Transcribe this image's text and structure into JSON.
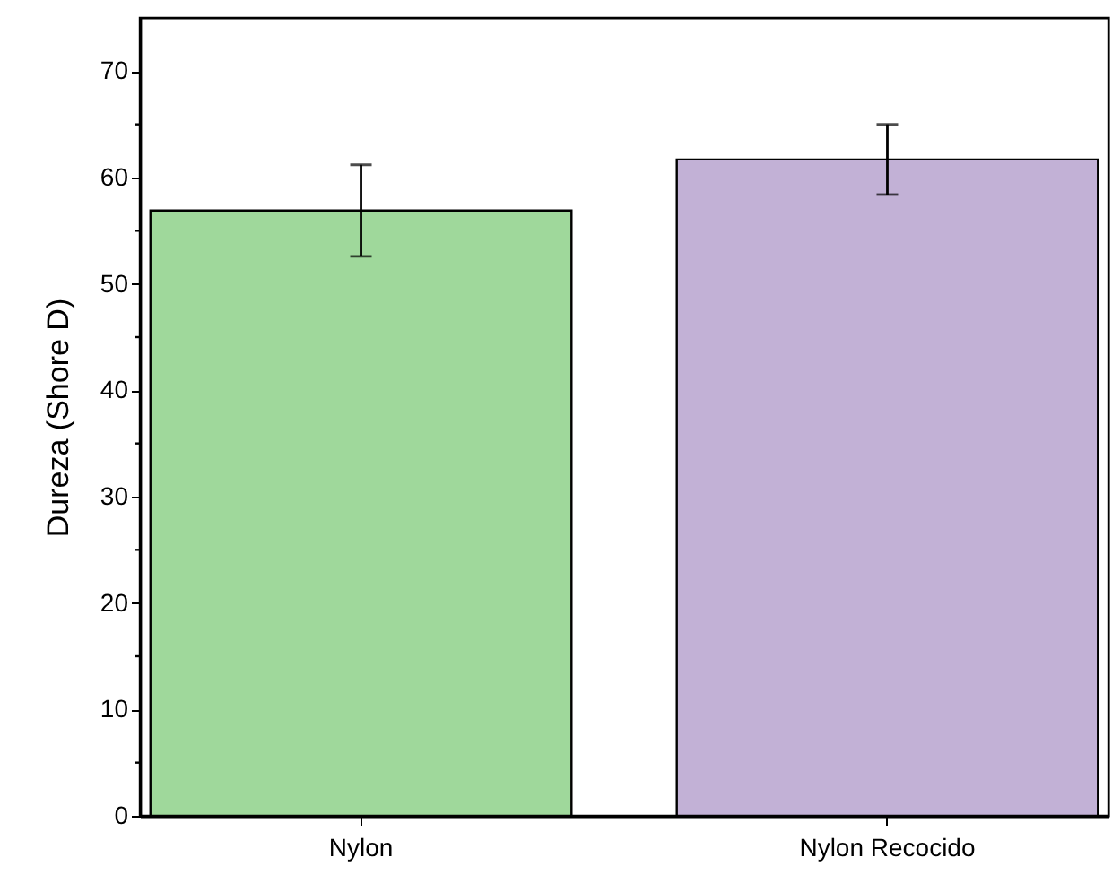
{
  "chart_data": {
    "type": "bar",
    "ylabel": "Dureza (Shore D)",
    "categories": [
      "Nylon",
      "Nylon Recocido"
    ],
    "values": [
      56.9,
      61.7
    ],
    "errors": [
      4.3,
      3.3
    ],
    "colors": [
      "#9fd89b",
      "#c2b1d6"
    ],
    "ylim": [
      0,
      75
    ],
    "yticks": [
      0,
      {
        "value": 5,
        "label": null
      },
      10,
      {
        "value": 15,
        "label": null
      },
      20,
      {
        "value": 25,
        "label": null
      },
      30,
      {
        "value": 35,
        "label": null
      },
      40,
      {
        "value": 45,
        "label": null
      },
      50,
      {
        "value": 55,
        "label": null
      },
      60,
      {
        "value": 65,
        "label": null
      },
      70
    ],
    "grid": false
  }
}
